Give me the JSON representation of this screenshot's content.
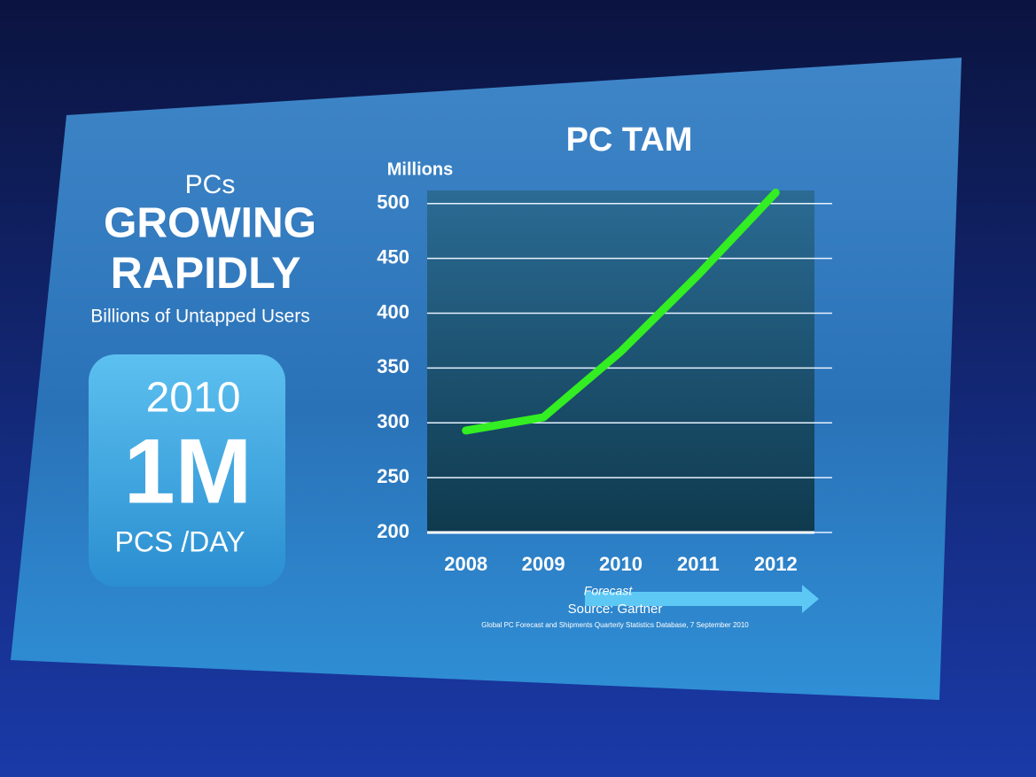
{
  "panel": {
    "kicker": "PCs",
    "headline": [
      "GROWING",
      "RAPIDLY"
    ],
    "subhead": "Billions of Untapped Users",
    "badge": {
      "year": "2010",
      "figure": "1M",
      "unit": "PCS /DAY"
    }
  },
  "chart_data": {
    "type": "line",
    "title": "PC TAM",
    "y_label": "Millions",
    "categories": [
      "2008",
      "2009",
      "2010",
      "2011",
      "2012"
    ],
    "series": [
      {
        "name": "PC TAM",
        "color": "#33ee22",
        "values": [
          293,
          305,
          365,
          435,
          510
        ]
      }
    ],
    "ylim": [
      200,
      520
    ],
    "yticks": [
      200,
      250,
      300,
      350,
      400,
      450,
      500
    ],
    "grid": true,
    "forecast_label": "Forecast",
    "source": "Source: Gartner",
    "source_detail": "Global PC Forecast and Shipments Quarterly Statistics Database, 7 September 2010"
  }
}
